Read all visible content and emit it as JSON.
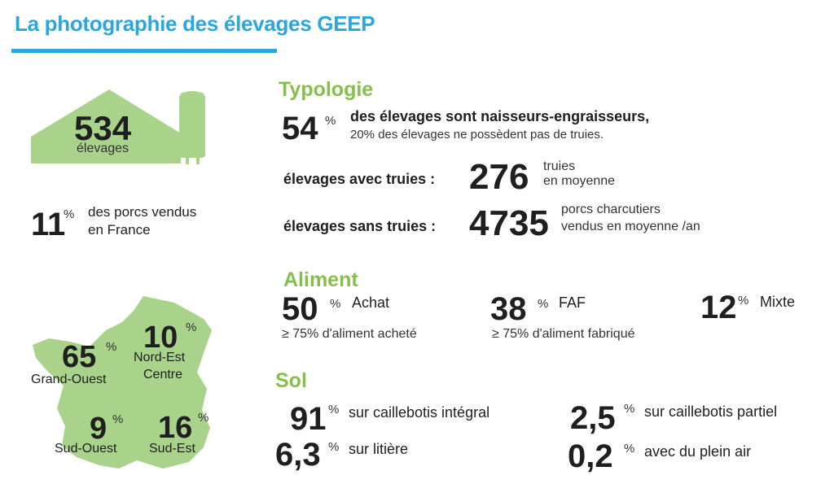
{
  "title": "La photographie des élevages GEEP",
  "colors": {
    "accent_blue": "#2aa6e0",
    "accent_green": "#86bf4a",
    "shape_green": "#a9d28a"
  },
  "farm": {
    "count": "534",
    "label": "élevages"
  },
  "pigs_share": {
    "value": "11",
    "unit": "%",
    "line1": "des porcs vendus",
    "line2": "en France"
  },
  "map": {
    "regions": [
      {
        "value": "65",
        "unit": "%",
        "label": "Grand-Ouest"
      },
      {
        "value": "10",
        "unit": "%",
        "label_line1": "Nord-Est",
        "label_line2": "Centre"
      },
      {
        "value": "9",
        "unit": "%",
        "label": "Sud-Ouest"
      },
      {
        "value": "16",
        "unit": "%",
        "label": "Sud-Est"
      }
    ]
  },
  "typologie": {
    "heading": "Typologie",
    "share": {
      "value": "54",
      "unit": "%",
      "line1": "des élevages sont naisseurs-engraisseurs,",
      "line2": "20% des élevages ne possèdent pas de truies."
    },
    "with_sows": {
      "label": "élevages avec truies :",
      "value": "276",
      "line1": "truies",
      "line2": "en moyenne"
    },
    "without_sows": {
      "label": "élevages sans truies :",
      "value": "4735",
      "line1": "porcs charcutiers",
      "line2": "vendus en moyenne /an"
    }
  },
  "aliment": {
    "heading": "Aliment",
    "items": [
      {
        "value": "50",
        "unit": "%",
        "label": "Achat",
        "sub": "≥ 75% d'aliment acheté"
      },
      {
        "value": "38",
        "unit": "%",
        "label": "FAF",
        "sub": "≥ 75% d'aliment fabriqué"
      },
      {
        "value": "12",
        "unit": "%",
        "label": "Mixte"
      }
    ]
  },
  "sol": {
    "heading": "Sol",
    "items": [
      {
        "value": "91",
        "unit": "%",
        "label": "sur caillebotis intégral"
      },
      {
        "value": "2,5",
        "unit": "%",
        "label": "sur caillebotis partiel"
      },
      {
        "value": "6,3",
        "unit": "%",
        "label": "sur litière"
      },
      {
        "value": "0,2",
        "unit": "%",
        "label": "avec du plein air"
      }
    ]
  }
}
